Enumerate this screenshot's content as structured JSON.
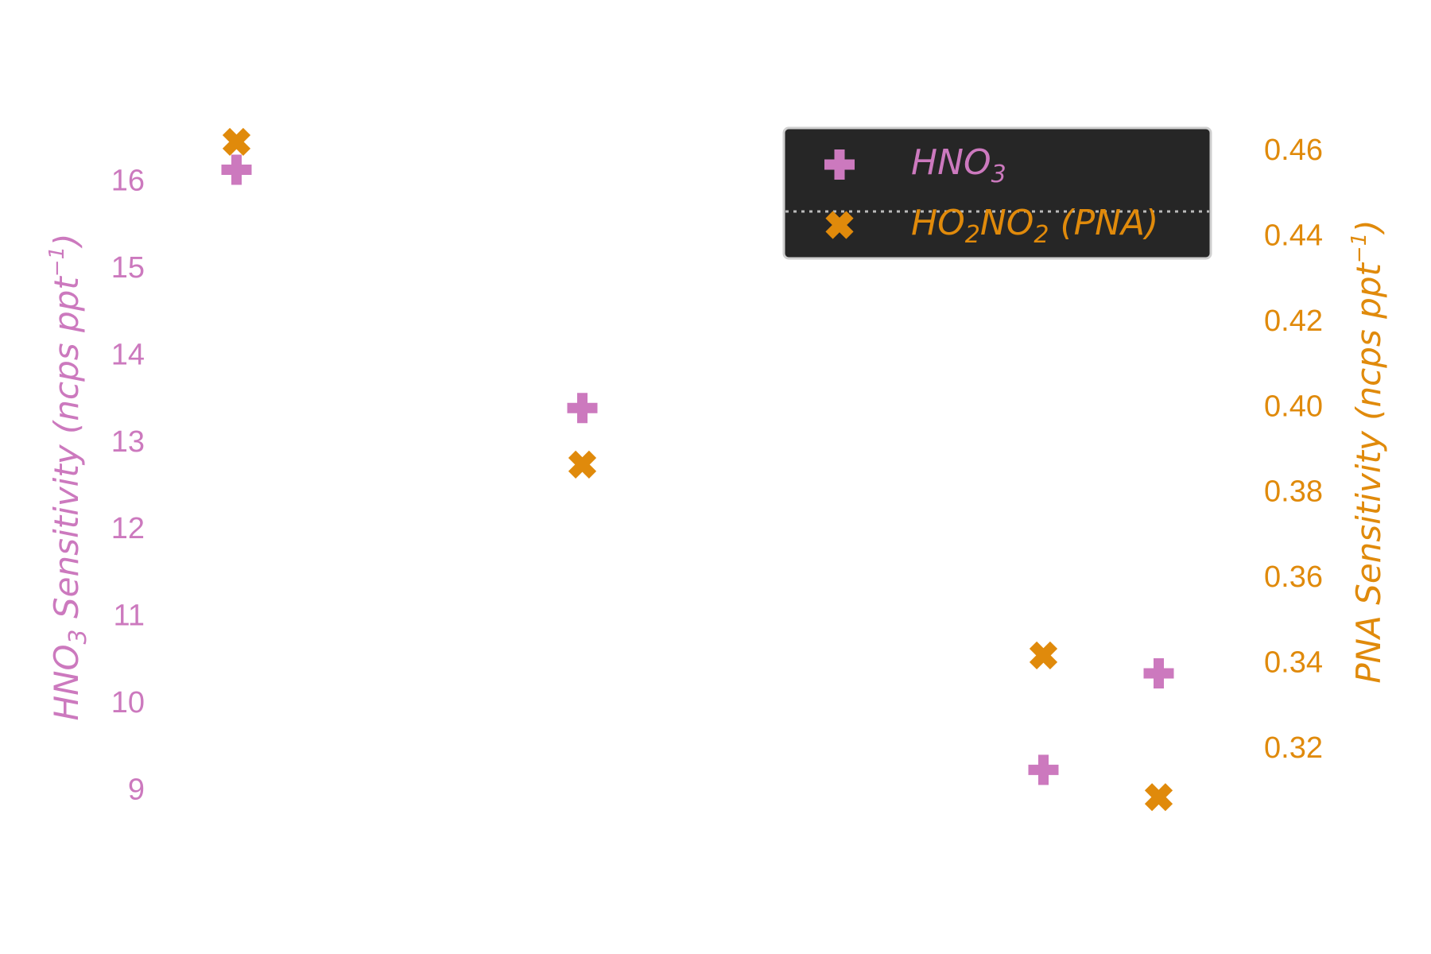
{
  "chart_data": {
    "type": "scatter",
    "colors": {
      "hno3": "#cc79be",
      "pna": "#e08a0b",
      "legend_bg": "#262626"
    },
    "left_axis": {
      "label_prefix": "HNO",
      "label_sub": "3",
      "label_mid": " Sensitivity (ncps ppt",
      "label_sup": "−1",
      "label_suffix": ")",
      "ticks": [
        "9",
        "10",
        "11",
        "12",
        "13",
        "14",
        "15",
        "16"
      ],
      "ylim": [
        8.2,
        16.7
      ]
    },
    "right_axis": {
      "label_main": "PNA Sensitivity (ncps ppt",
      "label_sup": "−1",
      "label_suffix": ")",
      "ticks": [
        "0.32",
        "0.34",
        "0.36",
        "0.38",
        "0.40",
        "0.42",
        "0.44",
        "0.46"
      ],
      "ylim": [
        0.2939,
        0.4671
      ]
    },
    "xlim": [
      0.5,
      9.5
    ],
    "grid": false,
    "legend_placement": "top-right",
    "series": [
      {
        "key": "hno3",
        "axis": "left",
        "marker": "plus",
        "points": [
          {
            "x": 1,
            "y": 16.12
          },
          {
            "x": 4,
            "y": 13.38
          },
          {
            "x": 8,
            "y": 9.22
          },
          {
            "x": 9,
            "y": 10.33
          }
        ]
      },
      {
        "key": "pna",
        "axis": "right",
        "marker": "x",
        "points": [
          {
            "x": 1,
            "y": 0.4618
          },
          {
            "x": 4,
            "y": 0.3862
          },
          {
            "x": 8,
            "y": 0.3415
          },
          {
            "x": 9,
            "y": 0.3083
          }
        ]
      }
    ],
    "legend": [
      {
        "key": "hno3",
        "text_main": "HNO",
        "text_sub": "3",
        "text_rest": ""
      },
      {
        "key": "pna",
        "text_main": "HO",
        "text_sub": "2",
        "text_mid": "NO",
        "text_sub2": "2",
        "text_rest": " (PNA)"
      }
    ]
  }
}
